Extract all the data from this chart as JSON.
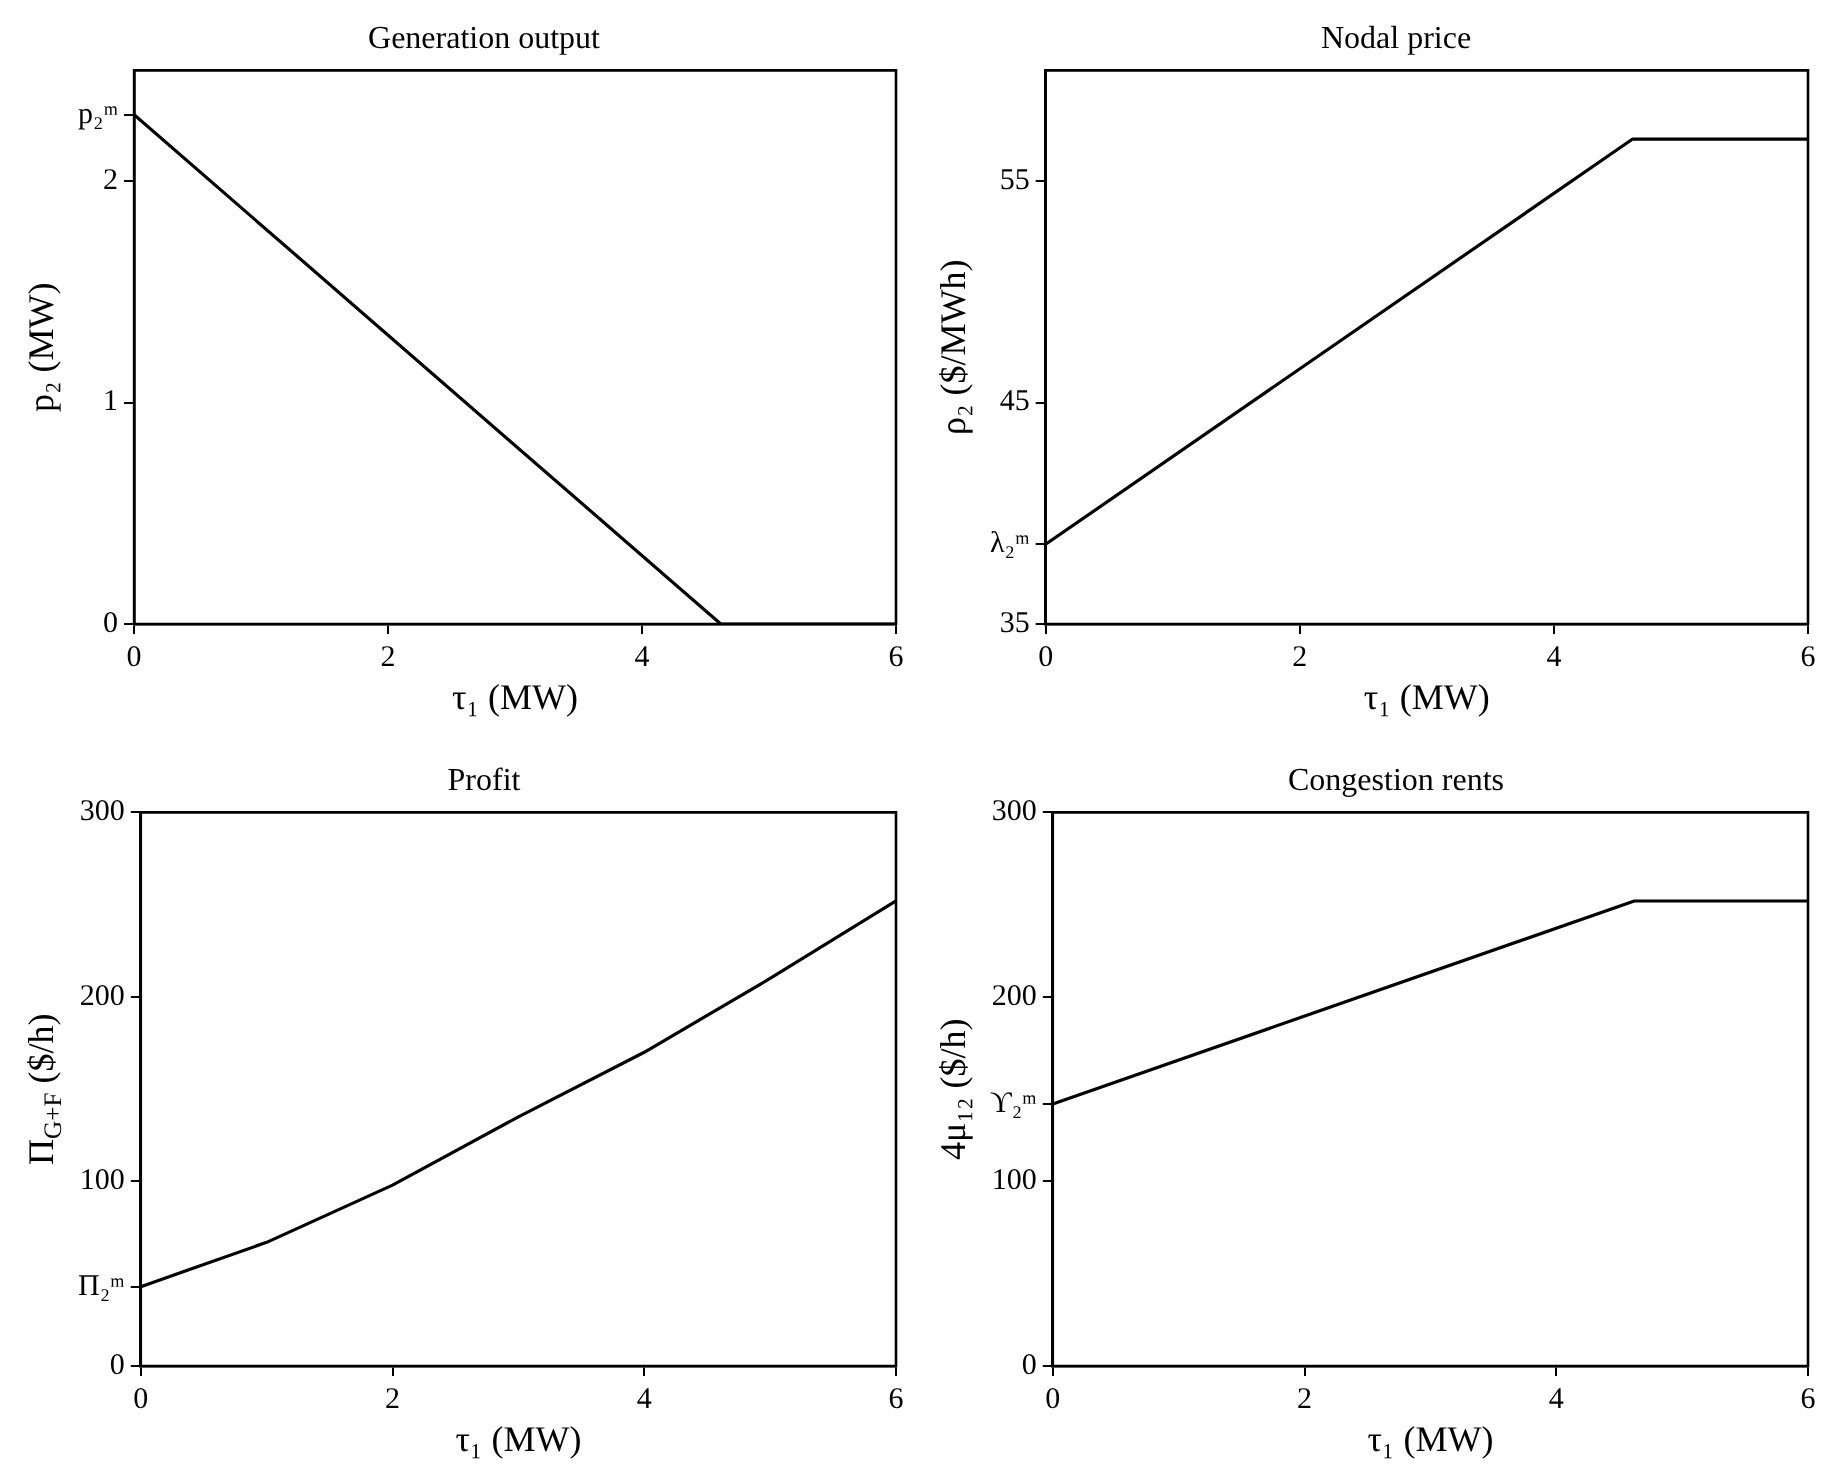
{
  "chart_data": [
    {
      "type": "line",
      "title": "Generation output",
      "xlabel": "τ₁ (MW)",
      "ylabel": "p₂ (MW)",
      "x": [
        0,
        4.62,
        6
      ],
      "series": [
        {
          "color": "#000000",
          "values": [
            2.3,
            0,
            0
          ]
        }
      ],
      "xlim": [
        0,
        6
      ],
      "xticks": [
        0,
        2,
        4,
        6
      ],
      "ylim": [
        0,
        2.5
      ],
      "yticks": [
        0,
        1,
        2,
        {
          "value": 2.3,
          "label": "p₂ᵐ"
        }
      ],
      "grid": false,
      "legend": false,
      "marker": "none",
      "line_style": "solid"
    },
    {
      "type": "line",
      "title": "Nodal price",
      "xlabel": "τ₁ (MW)",
      "ylabel": "ρ₂ ($/MWh)",
      "x": [
        0,
        4.62,
        6
      ],
      "series": [
        {
          "color": "#000000",
          "values": [
            38.6,
            56.9,
            56.9
          ]
        }
      ],
      "xlim": [
        0,
        6
      ],
      "xticks": [
        0,
        2,
        4,
        6
      ],
      "ylim": [
        35,
        60
      ],
      "yticks": [
        35,
        45,
        55,
        {
          "value": 38.6,
          "label": "λ₂ᵐ"
        }
      ],
      "grid": false,
      "legend": false,
      "marker": "none",
      "line_style": "solid"
    },
    {
      "type": "line",
      "title": "Profit",
      "xlabel": "τ₁ (MW)",
      "ylabel": "Π$_{G+F}$ ($/h)",
      "x": [
        0,
        1,
        2,
        3,
        4,
        5,
        6
      ],
      "series": [
        {
          "color": "#000000",
          "values": [
            43,
            67,
            98,
            135,
            170,
            210,
            252
          ]
        }
      ],
      "xlim": [
        0,
        6
      ],
      "xticks": [
        0,
        2,
        4,
        6
      ],
      "ylim": [
        0,
        300
      ],
      "yticks": [
        0,
        100,
        200,
        300,
        {
          "value": 43,
          "label": "Π₂ᵐ"
        }
      ],
      "grid": false,
      "legend": false,
      "marker": "none",
      "line_style": "solid"
    },
    {
      "type": "line",
      "title": "Congestion rents",
      "xlabel": "τ₁ (MW)",
      "ylabel": "4μ₁₂ ($/h)",
      "x": [
        0,
        4.62,
        6
      ],
      "series": [
        {
          "color": "#000000",
          "values": [
            142,
            252,
            252
          ]
        }
      ],
      "xlim": [
        0,
        6
      ],
      "xticks": [
        0,
        2,
        4,
        6
      ],
      "ylim": [
        0,
        300
      ],
      "yticks": [
        0,
        100,
        200,
        300,
        {
          "value": 142,
          "label": "ϒ₂ᵐ"
        }
      ],
      "grid": false,
      "legend": false,
      "marker": "none",
      "line_style": "solid"
    }
  ]
}
